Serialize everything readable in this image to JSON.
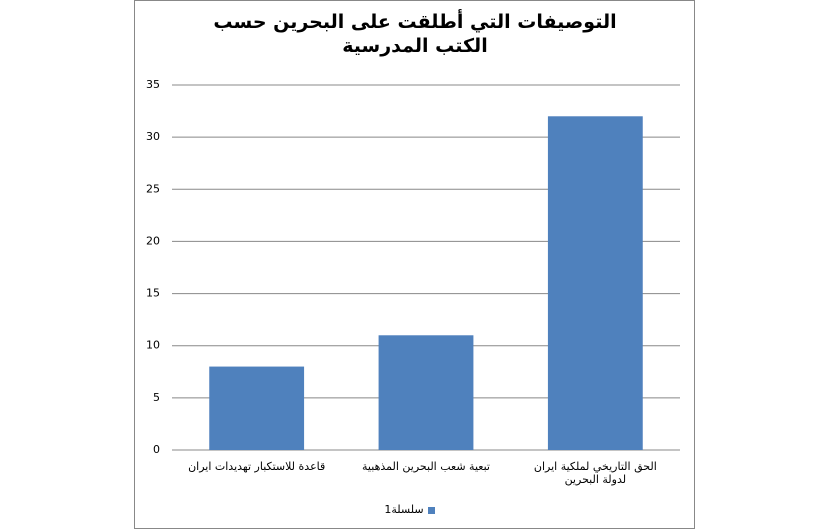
{
  "chart_data": {
    "type": "bar",
    "title": "التوصيفات التي أطلقت على البحرين حسب الكتب المدرسية",
    "categories": [
      "قاعدة للاستكبار تهديدات ايران",
      "تبعية شعب البحرين المذهبية",
      "الحق التاريخي لملكية ايران لدولة البحرين"
    ],
    "series": [
      {
        "name": "سلسلة1",
        "color": "#4f81bd",
        "values": [
          8,
          11,
          32
        ]
      }
    ],
    "ylim": [
      0,
      35
    ],
    "yticks": [
      0,
      5,
      10,
      15,
      20,
      25,
      30,
      35
    ],
    "grid": true,
    "legend": "bottom"
  }
}
